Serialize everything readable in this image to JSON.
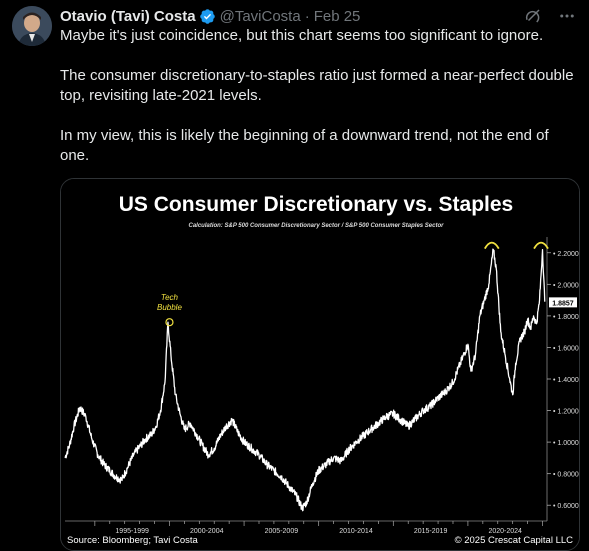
{
  "author": {
    "name": "Otavio (Tavi) Costa",
    "handle": "@TaviCosta",
    "date": "Feb 25",
    "separator": "·"
  },
  "icons": {
    "verified": "verified-badge-icon",
    "grok": "grok-icon",
    "more": "more-icon"
  },
  "tweet": {
    "paragraphs": [
      "Maybe it's just coincidence, but this chart seems too significant to ignore.",
      "The consumer discretionary-to-staples ratio just formed a near-perfect double top, revisiting late-2021 levels.",
      "In my view, this is likely the beginning of a downward trend, not the end of one."
    ]
  },
  "colors": {
    "accent": "#1d9bf0",
    "muted": "#71767b",
    "text": "#e7e9ea",
    "highlight": "#f0e040",
    "line": "#ffffff"
  },
  "chart_data": {
    "type": "line",
    "title": "US Consumer Discretionary vs. Staples",
    "subtitle": "Calculation: S&P 500 Consumer Discretionary Sector / S&P 500 Consumer Staples Sector",
    "x_tick_labels": [
      "1995-1999",
      "2000-2004",
      "2005-2009",
      "2010-2014",
      "2015-2019",
      "2020-2024"
    ],
    "y_tick_labels": [
      "2.2000",
      "2.0000",
      "1.8000",
      "1.6000",
      "1.4000",
      "1.2000",
      "1.0000",
      "0.8000",
      "0.6000"
    ],
    "y_ticks": [
      2.2,
      2.0,
      1.8,
      1.6,
      1.4,
      1.2,
      1.0,
      0.8,
      0.6
    ],
    "ylim": [
      0.5,
      2.3
    ],
    "xlim": [
      1993.0,
      2025.3
    ],
    "last_value_label": "1.8857",
    "last_value": 1.8857,
    "annotation": {
      "text": [
        "Tech",
        "Bubble"
      ],
      "x": 2000.0,
      "y": 1.76
    },
    "double_top_markers": [
      {
        "x": 2021.6,
        "y": 2.22
      },
      {
        "x": 2024.9,
        "y": 2.22
      }
    ],
    "source": "Source: Bloomberg; Tavi Costa",
    "copyright": "© 2025 Crescat Capital LLC",
    "series": [
      {
        "x": [
          1993.0,
          1993.3,
          1993.6,
          1994.0,
          1994.4,
          1994.8,
          1995.2,
          1995.6,
          1996.0,
          1996.4,
          1996.8,
          1997.2,
          1997.6,
          1998.0,
          1998.4,
          1998.8,
          1999.1,
          1999.4,
          1999.7,
          1999.9,
          2000.1,
          2000.4,
          2000.7,
          2001.0,
          2001.4,
          2001.8,
          2002.2,
          2002.6,
          2003.0,
          2003.4,
          2003.8,
          2004.2,
          2004.6,
          2005.0,
          2005.5,
          2006.0,
          2006.5,
          2007.0,
          2007.5,
          2008.0,
          2008.5,
          2008.9,
          2009.2,
          2009.6,
          2010.0,
          2010.5,
          2011.0,
          2011.5,
          2012.0,
          2012.5,
          2013.0,
          2013.5,
          2014.0,
          2014.5,
          2015.0,
          2015.5,
          2016.0,
          2016.5,
          2017.0,
          2017.5,
          2018.0,
          2018.5,
          2019.0,
          2019.5,
          2020.0,
          2020.2,
          2020.5,
          2020.8,
          2021.1,
          2021.4,
          2021.7,
          2021.9,
          2022.2,
          2022.5,
          2022.8,
          2023.0,
          2023.2,
          2023.5,
          2023.8,
          2024.0,
          2024.2,
          2024.4,
          2024.6,
          2024.8,
          2025.0,
          2025.15
        ],
        "y": [
          0.9,
          0.98,
          1.1,
          1.22,
          1.16,
          1.02,
          0.92,
          0.86,
          0.82,
          0.78,
          0.76,
          0.84,
          0.92,
          0.97,
          1.02,
          1.05,
          1.1,
          1.2,
          1.38,
          1.76,
          1.55,
          1.3,
          1.18,
          1.08,
          1.12,
          1.05,
          0.98,
          0.92,
          0.96,
          1.04,
          1.1,
          1.14,
          1.06,
          1.0,
          0.96,
          0.92,
          0.86,
          0.82,
          0.78,
          0.72,
          0.66,
          0.58,
          0.62,
          0.74,
          0.82,
          0.86,
          0.9,
          0.88,
          0.95,
          1.0,
          1.04,
          1.08,
          1.12,
          1.16,
          1.18,
          1.14,
          1.1,
          1.15,
          1.2,
          1.23,
          1.28,
          1.32,
          1.38,
          1.5,
          1.62,
          1.45,
          1.55,
          1.8,
          1.9,
          2.0,
          2.22,
          2.1,
          1.7,
          1.55,
          1.4,
          1.3,
          1.5,
          1.65,
          1.7,
          1.78,
          1.72,
          1.8,
          1.75,
          1.9,
          2.22,
          1.89
        ]
      }
    ]
  }
}
